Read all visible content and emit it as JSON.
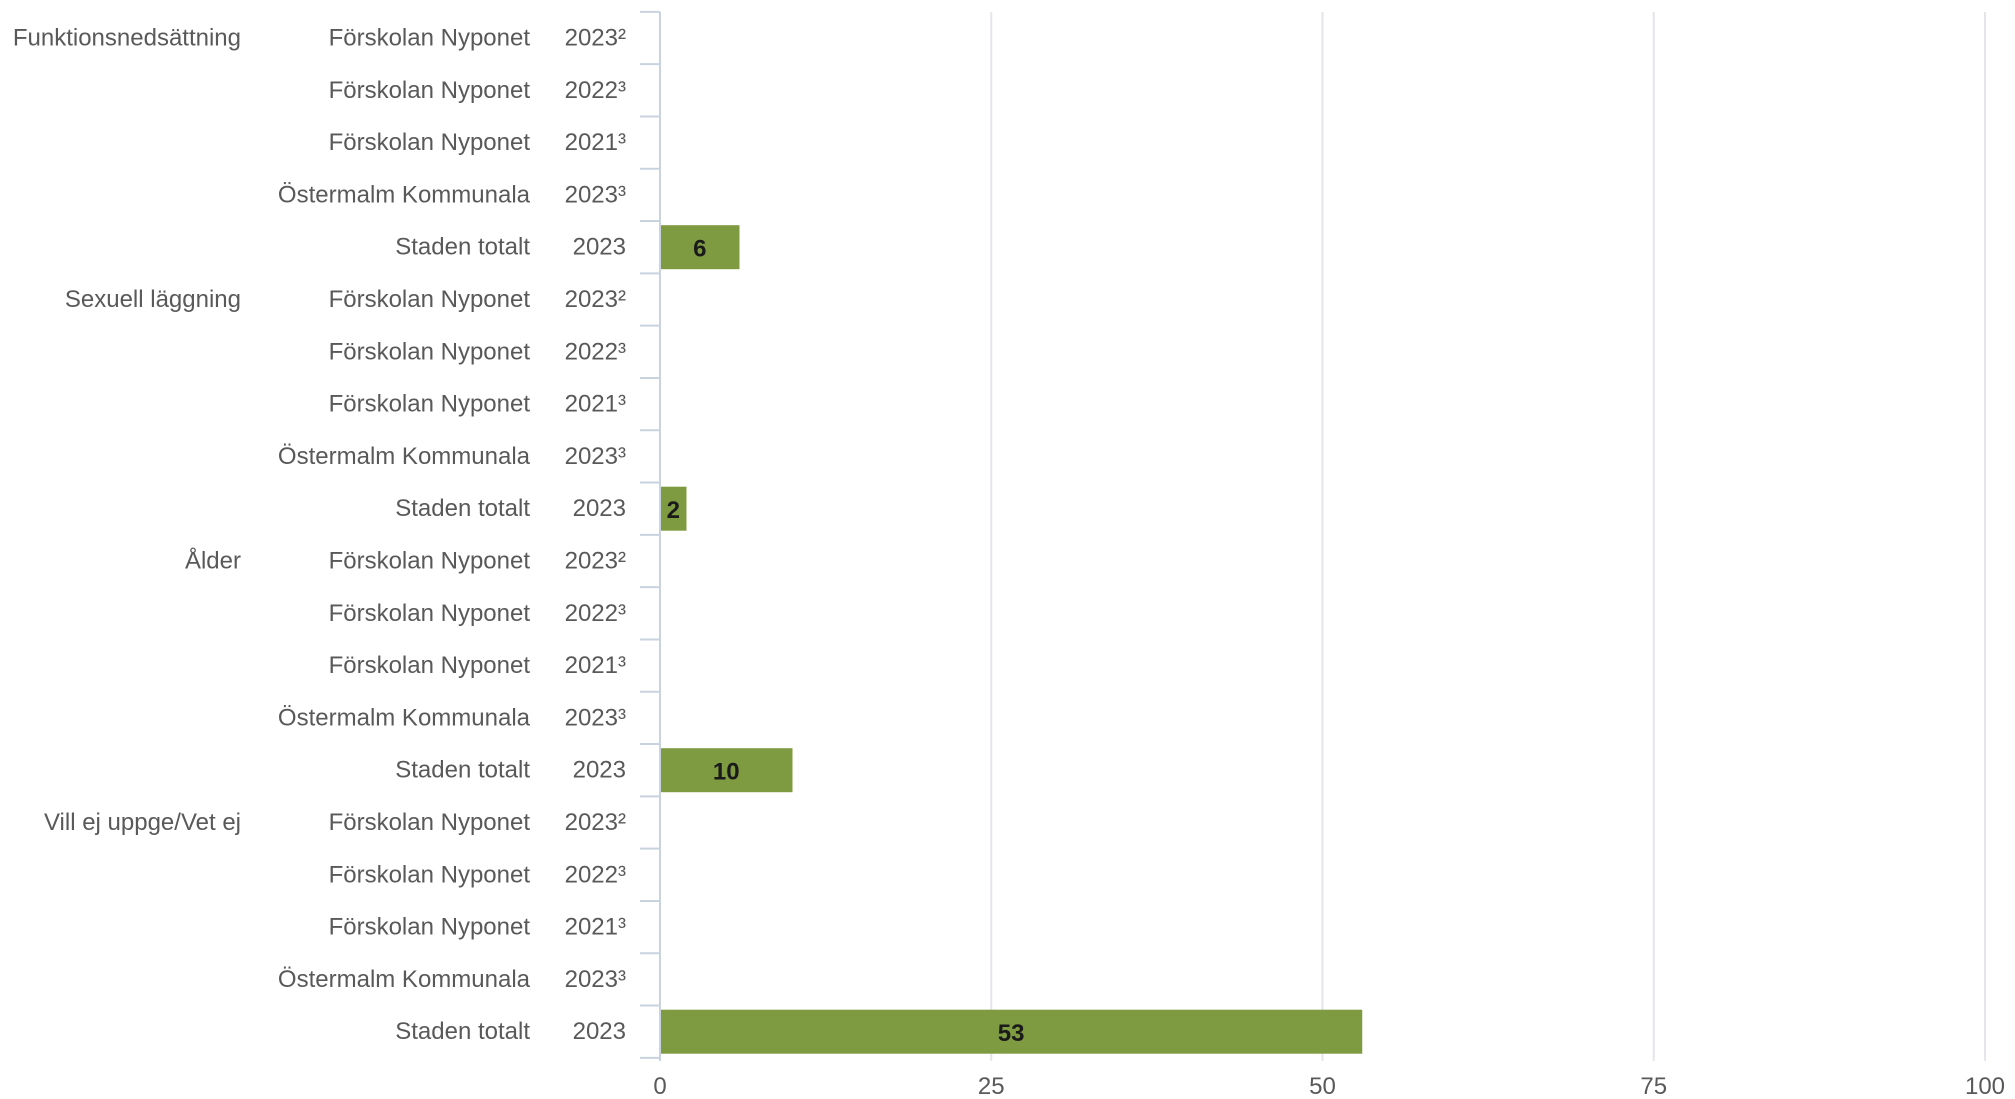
{
  "chart_data": {
    "type": "bar",
    "orientation": "horizontal",
    "title": "",
    "xlabel": "",
    "ylabel": "",
    "xlim": [
      0,
      100
    ],
    "xticks": [
      0,
      25,
      50,
      75,
      100
    ],
    "grid": true,
    "bar_color": "#7f9b42",
    "groups": [
      {
        "name": "Funktionsnedsättning",
        "rows": [
          {
            "unit": "Förskolan Nyponet",
            "year": "2023²",
            "value": null
          },
          {
            "unit": "Förskolan Nyponet",
            "year": "2022³",
            "value": null
          },
          {
            "unit": "Förskolan Nyponet",
            "year": "2021³",
            "value": null
          },
          {
            "unit": "Östermalm Kommunala",
            "year": "2023³",
            "value": null
          },
          {
            "unit": "Staden totalt",
            "year": "2023",
            "value": 6
          }
        ]
      },
      {
        "name": "Sexuell läggning",
        "rows": [
          {
            "unit": "Förskolan Nyponet",
            "year": "2023²",
            "value": null
          },
          {
            "unit": "Förskolan Nyponet",
            "year": "2022³",
            "value": null
          },
          {
            "unit": "Förskolan Nyponet",
            "year": "2021³",
            "value": null
          },
          {
            "unit": "Östermalm Kommunala",
            "year": "2023³",
            "value": null
          },
          {
            "unit": "Staden totalt",
            "year": "2023",
            "value": 2
          }
        ]
      },
      {
        "name": "Ålder",
        "rows": [
          {
            "unit": "Förskolan Nyponet",
            "year": "2023²",
            "value": null
          },
          {
            "unit": "Förskolan Nyponet",
            "year": "2022³",
            "value": null
          },
          {
            "unit": "Förskolan Nyponet",
            "year": "2021³",
            "value": null
          },
          {
            "unit": "Östermalm Kommunala",
            "year": "2023³",
            "value": null
          },
          {
            "unit": "Staden totalt",
            "year": "2023",
            "value": 10
          }
        ]
      },
      {
        "name": "Vill ej uppge/Vet ej",
        "rows": [
          {
            "unit": "Förskolan Nyponet",
            "year": "2023²",
            "value": null
          },
          {
            "unit": "Förskolan Nyponet",
            "year": "2022³",
            "value": null
          },
          {
            "unit": "Förskolan Nyponet",
            "year": "2021³",
            "value": null
          },
          {
            "unit": "Östermalm Kommunala",
            "year": "2023³",
            "value": null
          },
          {
            "unit": "Staden totalt",
            "year": "2023",
            "value": 53
          }
        ]
      }
    ]
  }
}
